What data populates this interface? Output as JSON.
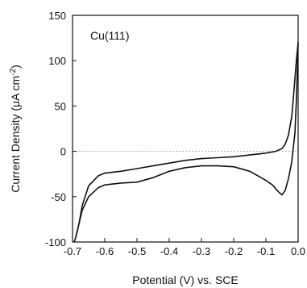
{
  "chart_data": {
    "type": "line",
    "title": "",
    "annotation": "Cu(111)",
    "xlabel": "Potential (V) vs. SCE",
    "ylabel_main": "Current Density (μA cm",
    "ylabel_exp": "-2",
    "ylabel_close": ")",
    "xlim": [
      -0.7,
      0.0
    ],
    "ylim": [
      -100,
      150
    ],
    "xticks": [
      -0.7,
      -0.6,
      -0.5,
      -0.4,
      -0.3,
      -0.2,
      -0.1,
      0.0
    ],
    "xtick_labels": [
      "-0.7",
      "-0.6",
      "-0.5",
      "-0.4",
      "-0.3",
      "-0.2",
      "-0.1",
      "0.0"
    ],
    "yticks": [
      -100,
      -50,
      0,
      50,
      100,
      150
    ],
    "ytick_labels": [
      "-100",
      "-50",
      "0",
      "50",
      "100",
      "150"
    ],
    "zero_line": true,
    "grid": false,
    "line_color": "#111111",
    "series": [
      {
        "x": [
          -0.695,
          -0.69,
          -0.68,
          -0.67,
          -0.65,
          -0.62,
          -0.6,
          -0.55,
          -0.5,
          -0.45,
          -0.4,
          -0.35,
          -0.3,
          -0.25,
          -0.2,
          -0.15,
          -0.1,
          -0.07,
          -0.05,
          -0.04,
          -0.03,
          -0.02,
          -0.015,
          -0.01,
          -0.005,
          0.0
        ],
        "y": [
          -100,
          -95,
          -80,
          -60,
          -38,
          -27,
          -24,
          -22,
          -19,
          -16,
          -13,
          -10,
          -8,
          -7,
          -6,
          -4,
          -2,
          0,
          3,
          8,
          18,
          38,
          58,
          80,
          102,
          120
        ]
      },
      {
        "x": [
          0.0,
          -0.005,
          -0.01,
          -0.02,
          -0.03,
          -0.04,
          -0.05,
          -0.06,
          -0.08,
          -0.1,
          -0.15,
          -0.2,
          -0.25,
          -0.3,
          -0.35,
          -0.4,
          -0.45,
          -0.5,
          -0.55,
          -0.6,
          -0.62,
          -0.65,
          -0.67,
          -0.68,
          -0.69
        ],
        "y": [
          120,
          60,
          20,
          -12,
          -30,
          -43,
          -48,
          -45,
          -37,
          -32,
          -22,
          -17,
          -16,
          -16,
          -18,
          -22,
          -29,
          -34,
          -35,
          -37,
          -40,
          -50,
          -65,
          -80,
          -95
        ]
      }
    ]
  }
}
